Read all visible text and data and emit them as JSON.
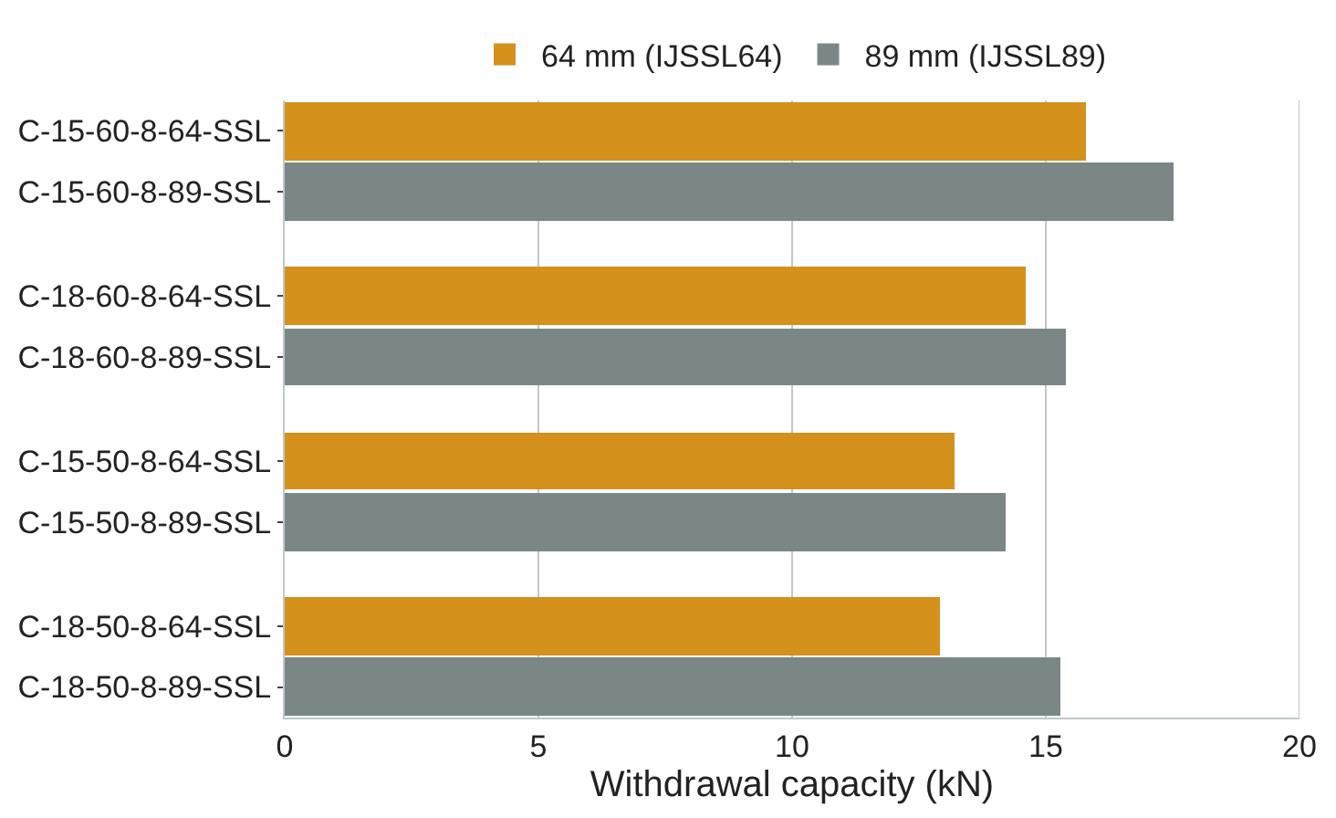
{
  "chart_data": {
    "type": "bar",
    "orientation": "horizontal",
    "categories": [
      "C-15-60-8-64-SSL",
      "C-15-60-8-89-SSL",
      "C-18-60-8-64-SSL",
      "C-18-60-8-89-SSL",
      "C-15-50-8-64-SSL",
      "C-15-50-8-89-SSL",
      "C-18-50-8-64-SSL",
      "C-18-50-8-89-SSL"
    ],
    "series": [
      {
        "name": "64 mm (IJSSL64)",
        "color": "#d4911c",
        "values": [
          15.8,
          null,
          14.6,
          null,
          13.2,
          null,
          12.9,
          null
        ]
      },
      {
        "name": "89 mm (IJSSL89)",
        "color": "#7a8786",
        "values": [
          null,
          17.5,
          null,
          15.4,
          null,
          14.2,
          null,
          15.3
        ]
      }
    ],
    "xlabel": "Withdrawal capacity (kN)",
    "xlim": [
      0,
      20
    ],
    "xticks": [
      0,
      5,
      10,
      15,
      20
    ],
    "grid": "x",
    "legend": "top"
  }
}
